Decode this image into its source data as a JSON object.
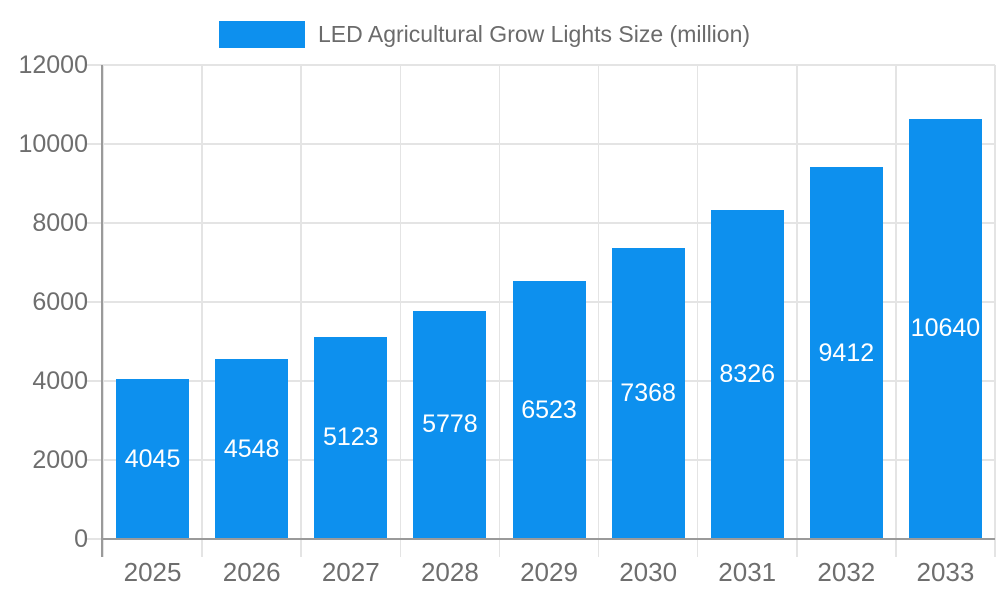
{
  "legend": {
    "label": "LED Agricultural Grow Lights Size (million)"
  },
  "chart_data": {
    "type": "bar",
    "title": "LED Agricultural Grow Lights Size (million)",
    "categories": [
      "2025",
      "2026",
      "2027",
      "2028",
      "2029",
      "2030",
      "2031",
      "2032",
      "2033"
    ],
    "values": [
      4045,
      4548,
      5123,
      5778,
      6523,
      7368,
      8326,
      9412,
      10640
    ],
    "xlabel": "",
    "ylabel": "",
    "ylim": [
      0,
      12000
    ],
    "yticks": [
      0,
      2000,
      4000,
      6000,
      8000,
      10000,
      12000
    ],
    "grid": true,
    "legend_position": "top-center",
    "colors": {
      "bar": "#0d90ee",
      "value_label": "#ffffff",
      "axis": "#9a9a9a",
      "gridline": "#e4e4e4",
      "tick_label": "#6e6e6e",
      "legend_text": "#6b6b6b",
      "background": "#ffffff"
    }
  }
}
